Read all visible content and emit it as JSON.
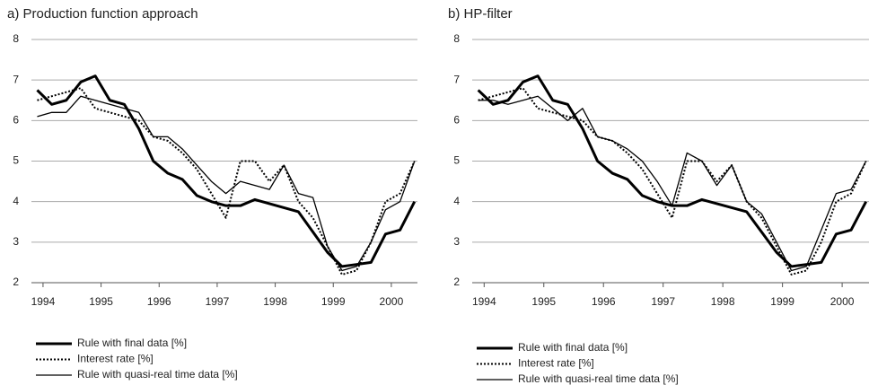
{
  "chart_data": [
    {
      "type": "line",
      "title": "a) Production function approach",
      "x": [
        1993.9,
        1994.15,
        1994.4,
        1994.65,
        1994.9,
        1995.15,
        1995.4,
        1995.65,
        1995.9,
        1996.15,
        1996.4,
        1996.65,
        1996.9,
        1997.15,
        1997.4,
        1997.65,
        1997.9,
        1998.15,
        1998.4,
        1998.65,
        1998.9,
        1999.15,
        1999.4,
        1999.65,
        1999.9,
        2000.15,
        2000.4
      ],
      "xlim": [
        1993.8,
        2000.45
      ],
      "xticks": [
        1994,
        1995,
        1996,
        1997,
        1998,
        1999,
        2000
      ],
      "ylim": [
        2,
        8
      ],
      "yticks": [
        2,
        3,
        4,
        5,
        6,
        7,
        8
      ],
      "grid": true,
      "series": [
        {
          "name": "Rule with final data [%]",
          "color": "#000000",
          "linestyle": "solid",
          "linewidth": 3,
          "values": [
            6.75,
            6.4,
            6.5,
            6.95,
            7.1,
            6.5,
            6.4,
            5.8,
            5.0,
            4.7,
            4.55,
            4.15,
            4.0,
            3.9,
            3.9,
            4.05,
            3.95,
            3.85,
            3.75,
            3.25,
            2.75,
            2.4,
            2.45,
            2.5,
            3.2,
            3.3,
            4.0
          ]
        },
        {
          "name": "Interest rate [%]",
          "color": "#000000",
          "linestyle": "dotted",
          "linewidth": 2,
          "values": [
            6.5,
            6.6,
            6.7,
            6.8,
            6.3,
            6.2,
            6.1,
            6.0,
            5.6,
            5.5,
            5.2,
            4.8,
            4.2,
            3.6,
            5.0,
            5.0,
            4.5,
            4.9,
            4.0,
            3.6,
            2.9,
            2.2,
            2.3,
            3.0,
            4.0,
            4.2,
            5.0
          ]
        },
        {
          "name": "Rule with quasi-real time data [%]",
          "color": "#000000",
          "linestyle": "solid",
          "linewidth": 1.3,
          "values": [
            6.1,
            6.2,
            6.2,
            6.6,
            6.5,
            6.4,
            6.3,
            6.2,
            5.6,
            5.6,
            5.3,
            4.9,
            4.5,
            4.2,
            4.5,
            4.4,
            4.3,
            4.9,
            4.2,
            4.1,
            2.9,
            2.3,
            2.4,
            3.0,
            3.8,
            4.0,
            5.0
          ]
        }
      ]
    },
    {
      "type": "line",
      "title": "b) HP-filter",
      "x": [
        1993.9,
        1994.15,
        1994.4,
        1994.65,
        1994.9,
        1995.15,
        1995.4,
        1995.65,
        1995.9,
        1996.15,
        1996.4,
        1996.65,
        1996.9,
        1997.15,
        1997.4,
        1997.65,
        1997.9,
        1998.15,
        1998.4,
        1998.65,
        1998.9,
        1999.15,
        1999.4,
        1999.65,
        1999.9,
        2000.15,
        2000.4
      ],
      "xlim": [
        1993.8,
        2000.45
      ],
      "xticks": [
        1994,
        1995,
        1996,
        1997,
        1998,
        1999,
        2000
      ],
      "ylim": [
        2,
        8
      ],
      "yticks": [
        2,
        3,
        4,
        5,
        6,
        7,
        8
      ],
      "grid": true,
      "series": [
        {
          "name": "Rule with final data [%]",
          "color": "#000000",
          "linestyle": "solid",
          "linewidth": 3,
          "values": [
            6.75,
            6.4,
            6.5,
            6.95,
            7.1,
            6.5,
            6.4,
            5.8,
            5.0,
            4.7,
            4.55,
            4.15,
            4.0,
            3.9,
            3.9,
            4.05,
            3.95,
            3.85,
            3.75,
            3.25,
            2.75,
            2.4,
            2.45,
            2.5,
            3.2,
            3.3,
            4.0
          ]
        },
        {
          "name": "Interest rate [%]",
          "color": "#000000",
          "linestyle": "dotted",
          "linewidth": 2,
          "values": [
            6.5,
            6.6,
            6.7,
            6.8,
            6.3,
            6.2,
            6.1,
            6.0,
            5.6,
            5.5,
            5.2,
            4.8,
            4.2,
            3.6,
            5.0,
            5.0,
            4.5,
            4.9,
            4.0,
            3.6,
            2.9,
            2.2,
            2.3,
            3.0,
            4.0,
            4.2,
            5.0
          ]
        },
        {
          "name": "Rule with quasi-real time data [%]",
          "color": "#000000",
          "linestyle": "solid",
          "linewidth": 1.3,
          "values": [
            6.5,
            6.5,
            6.4,
            6.5,
            6.6,
            6.3,
            6.0,
            6.3,
            5.6,
            5.5,
            5.3,
            5.0,
            4.5,
            3.9,
            5.2,
            5.0,
            4.4,
            4.9,
            4.0,
            3.7,
            3.0,
            2.3,
            2.4,
            3.3,
            4.2,
            4.3,
            5.0
          ]
        }
      ]
    }
  ]
}
